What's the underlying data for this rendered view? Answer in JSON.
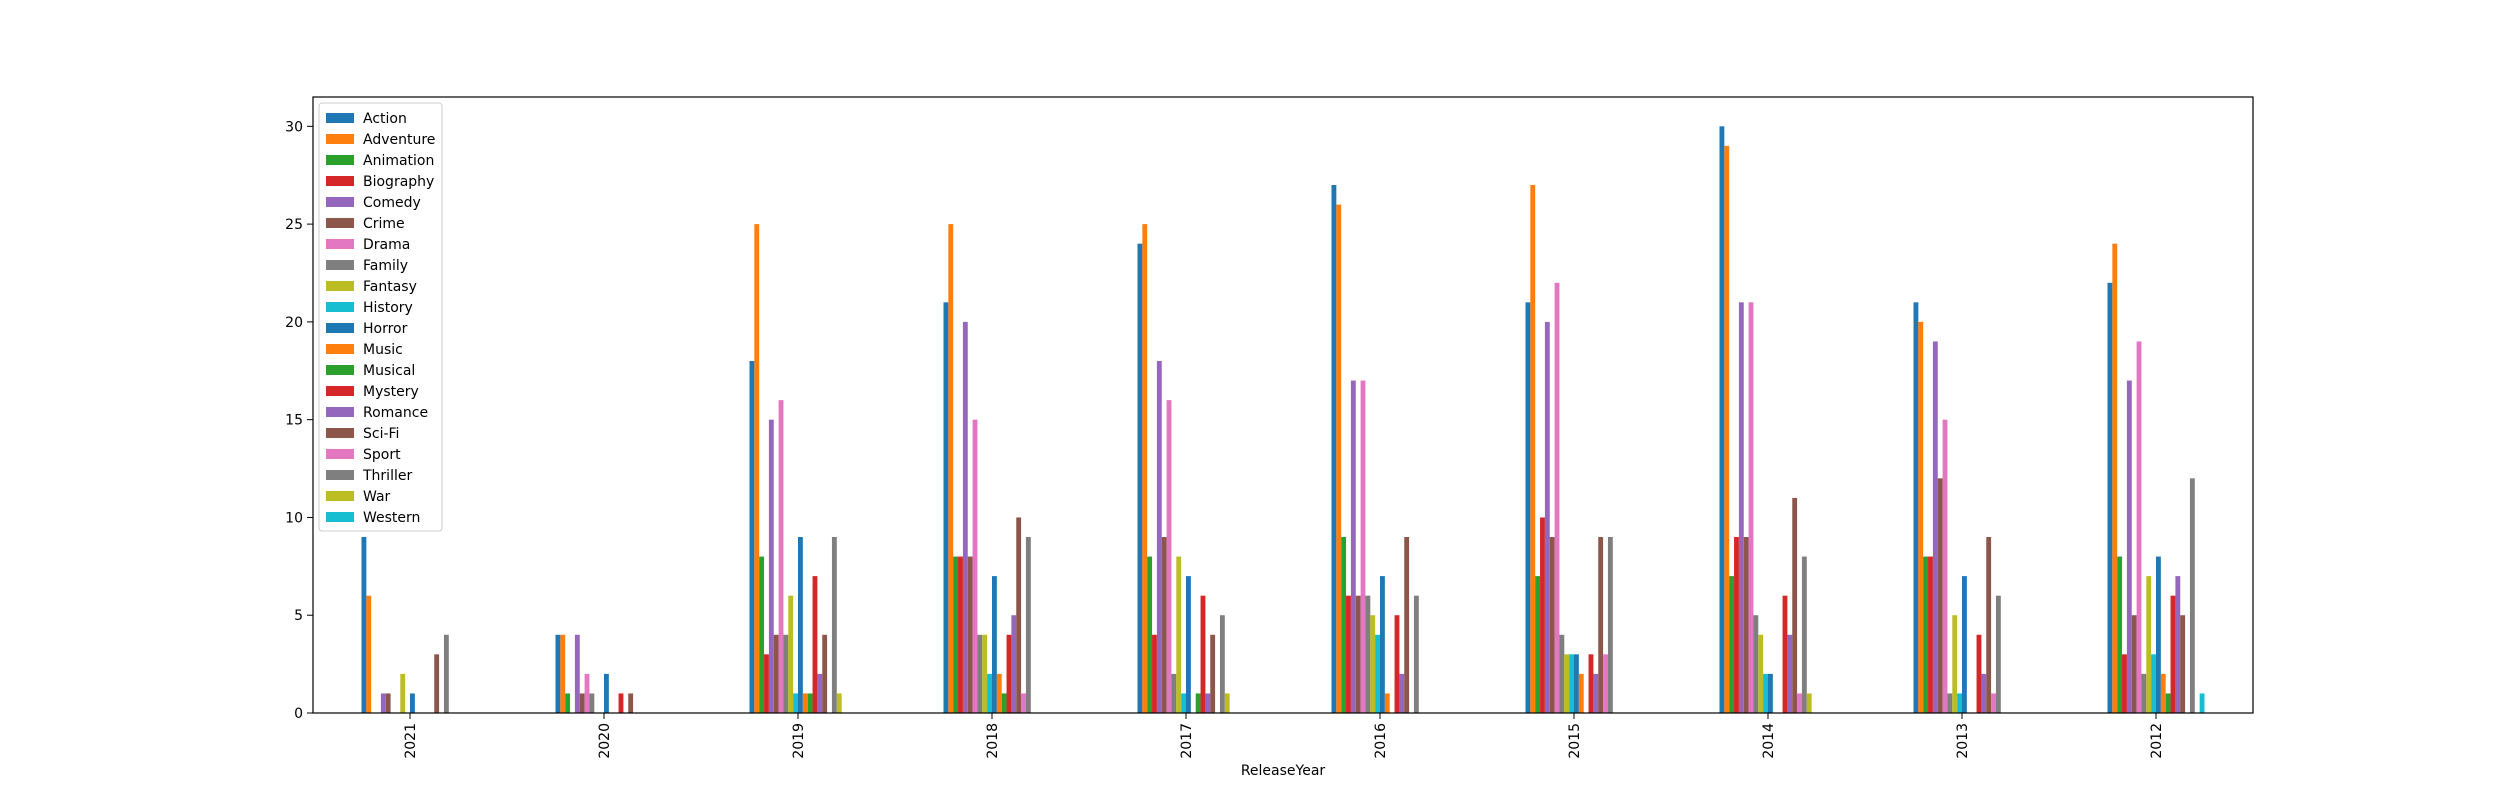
{
  "chart_data": {
    "type": "bar",
    "title": "",
    "xlabel": "ReleaseYear",
    "ylabel": "",
    "ylim": [
      0,
      31.5
    ],
    "yticks": [
      0,
      5,
      10,
      15,
      20,
      25,
      30
    ],
    "grid": false,
    "legend_position": "upper-left",
    "categories": [
      "2021",
      "2020",
      "2019",
      "2018",
      "2017",
      "2016",
      "2015",
      "2014",
      "2013",
      "2012"
    ],
    "series": [
      {
        "name": "Action",
        "color": "#1f77b4",
        "values": [
          9,
          4,
          18,
          21,
          24,
          27,
          21,
          30,
          21,
          22
        ]
      },
      {
        "name": "Adventure",
        "color": "#ff7f0e",
        "values": [
          6,
          4,
          25,
          25,
          25,
          26,
          27,
          29,
          20,
          24
        ]
      },
      {
        "name": "Animation",
        "color": "#2ca02c",
        "values": [
          0,
          1,
          8,
          8,
          8,
          9,
          7,
          7,
          8,
          8
        ]
      },
      {
        "name": "Biography",
        "color": "#d62728",
        "values": [
          0,
          0,
          3,
          8,
          4,
          6,
          10,
          9,
          8,
          3
        ]
      },
      {
        "name": "Comedy",
        "color": "#9467bd",
        "values": [
          1,
          4,
          15,
          20,
          18,
          17,
          20,
          21,
          19,
          17
        ]
      },
      {
        "name": "Crime",
        "color": "#8c564b",
        "values": [
          1,
          1,
          4,
          8,
          9,
          6,
          9,
          9,
          12,
          5
        ]
      },
      {
        "name": "Drama",
        "color": "#e377c2",
        "values": [
          0,
          2,
          16,
          15,
          16,
          17,
          22,
          21,
          15,
          19
        ]
      },
      {
        "name": "Family",
        "color": "#7f7f7f",
        "values": [
          0,
          1,
          4,
          4,
          2,
          6,
          4,
          5,
          1,
          2
        ]
      },
      {
        "name": "Fantasy",
        "color": "#bcbd22",
        "values": [
          2,
          0,
          6,
          4,
          8,
          5,
          3,
          4,
          5,
          7
        ]
      },
      {
        "name": "History",
        "color": "#17becf",
        "values": [
          0,
          0,
          1,
          2,
          1,
          4,
          3,
          2,
          1,
          3
        ]
      },
      {
        "name": "Horror",
        "color": "#1f77b4",
        "values": [
          1,
          2,
          9,
          7,
          7,
          7,
          3,
          2,
          7,
          8
        ]
      },
      {
        "name": "Music",
        "color": "#ff7f0e",
        "values": [
          0,
          0,
          1,
          2,
          0,
          1,
          2,
          0,
          0,
          2
        ]
      },
      {
        "name": "Musical",
        "color": "#2ca02c",
        "values": [
          0,
          0,
          1,
          1,
          1,
          0,
          0,
          0,
          0,
          1
        ]
      },
      {
        "name": "Mystery",
        "color": "#d62728",
        "values": [
          0,
          1,
          7,
          4,
          6,
          5,
          3,
          6,
          4,
          6
        ]
      },
      {
        "name": "Romance",
        "color": "#9467bd",
        "values": [
          0,
          0,
          2,
          5,
          1,
          2,
          2,
          4,
          2,
          7
        ]
      },
      {
        "name": "Sci-Fi",
        "color": "#8c564b",
        "values": [
          3,
          1,
          4,
          10,
          4,
          9,
          9,
          11,
          9,
          5
        ]
      },
      {
        "name": "Sport",
        "color": "#e377c2",
        "values": [
          0,
          0,
          0,
          1,
          0,
          0,
          3,
          1,
          1,
          0
        ]
      },
      {
        "name": "Thriller",
        "color": "#7f7f7f",
        "values": [
          4,
          0,
          9,
          9,
          5,
          6,
          9,
          8,
          6,
          12
        ]
      },
      {
        "name": "War",
        "color": "#bcbd22",
        "values": [
          0,
          0,
          1,
          0,
          1,
          0,
          0,
          1,
          0,
          0
        ]
      },
      {
        "name": "Western",
        "color": "#17becf",
        "values": [
          0,
          0,
          0,
          0,
          0,
          0,
          0,
          0,
          0,
          1
        ]
      }
    ]
  }
}
